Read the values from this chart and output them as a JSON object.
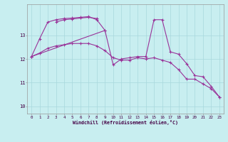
{
  "xlabel": "Windchill (Refroidissement éolien,°C)",
  "background_color": "#c8eef0",
  "grid_color": "#a8d8dc",
  "line_color": "#993399",
  "ylim": [
    9.7,
    14.3
  ],
  "xlim": [
    -0.5,
    23.5
  ],
  "yticks": [
    10,
    11,
    12,
    13
  ],
  "xticks": [
    0,
    1,
    2,
    3,
    4,
    5,
    6,
    7,
    8,
    9,
    10,
    11,
    12,
    13,
    14,
    15,
    16,
    17,
    18,
    19,
    20,
    21,
    22,
    23
  ],
  "line1_x": [
    0,
    1,
    2,
    3,
    4,
    5,
    6,
    7,
    8,
    9,
    10,
    11,
    12,
    13,
    14,
    15,
    16,
    17,
    18,
    19,
    20,
    21,
    22,
    23
  ],
  "line1_y": [
    12.1,
    12.25,
    12.45,
    12.55,
    12.6,
    12.65,
    12.65,
    12.65,
    12.55,
    12.35,
    12.05,
    11.95,
    11.95,
    12.05,
    12.0,
    12.05,
    11.95,
    11.85,
    11.55,
    11.15,
    11.15,
    10.95,
    10.75,
    10.4
  ],
  "line2_x": [
    0,
    1,
    2,
    3,
    4,
    5,
    6,
    7,
    8,
    9
  ],
  "line2_y": [
    12.1,
    12.85,
    13.55,
    13.65,
    13.7,
    13.72,
    13.75,
    13.78,
    13.65,
    13.2
  ],
  "line3_x": [
    3,
    4,
    5,
    6,
    7,
    8
  ],
  "line3_y": [
    13.55,
    13.65,
    13.68,
    13.72,
    13.75,
    13.7
  ],
  "line4_x": [
    0,
    9,
    10,
    11,
    12,
    13,
    14,
    15,
    16,
    17,
    18,
    19,
    20,
    21,
    22,
    23
  ],
  "line4_y": [
    12.1,
    13.2,
    11.75,
    12.0,
    12.05,
    12.1,
    12.1,
    13.65,
    13.65,
    12.3,
    12.2,
    11.8,
    11.3,
    11.25,
    10.85,
    10.4
  ]
}
